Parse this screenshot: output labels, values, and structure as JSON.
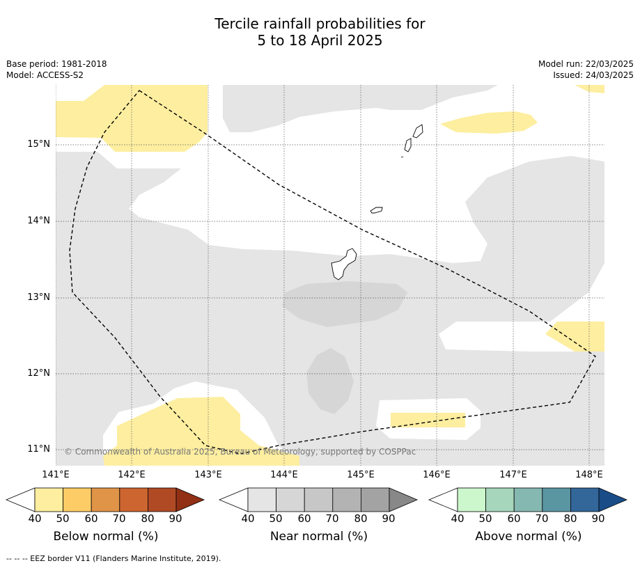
{
  "title": {
    "line1": "Tercile rainfall probabilities for",
    "line2": "5 to 18 April 2025"
  },
  "meta": {
    "base_period": "Base period: 1981-2018",
    "model": "Model: ACCESS-S2",
    "model_run": "Model run: 22/03/2025",
    "issued": "Issued: 24/03/2025"
  },
  "map": {
    "lat_labels": [
      "15°N",
      "14°N",
      "13°N",
      "12°N",
      "11°N"
    ],
    "lon_labels": [
      "141°E",
      "142°E",
      "143°E",
      "144°E",
      "145°E",
      "146°E",
      "147°E",
      "148°E"
    ],
    "copyright": "© Commonwealth of Australia 2025, Bureau of Meteorology, supported by COSPPac"
  },
  "colorbars": [
    {
      "title": "Below normal (%)",
      "ticks": [
        "40",
        "50",
        "60",
        "70",
        "80",
        "90"
      ],
      "colors": [
        "#fdeea0",
        "#fdcc66",
        "#e09448",
        "#cc6530",
        "#b04a25",
        "#913015"
      ]
    },
    {
      "title": "Near normal (%)",
      "ticks": [
        "40",
        "50",
        "60",
        "70",
        "80",
        "90"
      ],
      "colors": [
        "#e5e5e5",
        "#d6d6d6",
        "#c7c7c7",
        "#b3b3b3",
        "#a3a3a3",
        "#888888"
      ]
    },
    {
      "title": "Above normal (%)",
      "ticks": [
        "40",
        "50",
        "60",
        "70",
        "80",
        "90"
      ],
      "colors": [
        "#ccf7cc",
        "#a6d6bb",
        "#86b8b2",
        "#5a95a2",
        "#336699",
        "#1a4c88"
      ]
    }
  ],
  "footer": "-- -- -- EEZ border V11 (Flanders Marine Institute, 2019)."
}
